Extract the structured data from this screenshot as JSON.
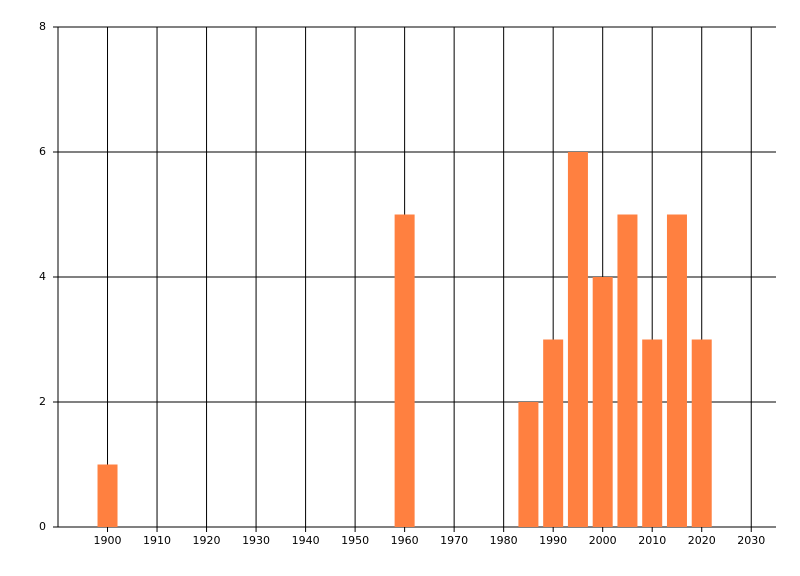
{
  "chart_data": {
    "type": "bar",
    "x": [
      1900,
      1960,
      1985,
      1990,
      1995,
      2000,
      2005,
      2010,
      2015,
      2020
    ],
    "values": [
      1,
      5,
      2,
      3,
      6,
      4,
      5,
      3,
      5,
      3
    ],
    "color": "#ff8040",
    "xlim": [
      1890,
      2035
    ],
    "xticks": [
      1900,
      1910,
      1920,
      1930,
      1940,
      1950,
      1960,
      1970,
      1980,
      1990,
      2000,
      2010,
      2020,
      2030
    ],
    "ylim": [
      0,
      8
    ],
    "yticks": [
      0,
      2,
      4,
      6,
      8
    ],
    "grid": true
  }
}
